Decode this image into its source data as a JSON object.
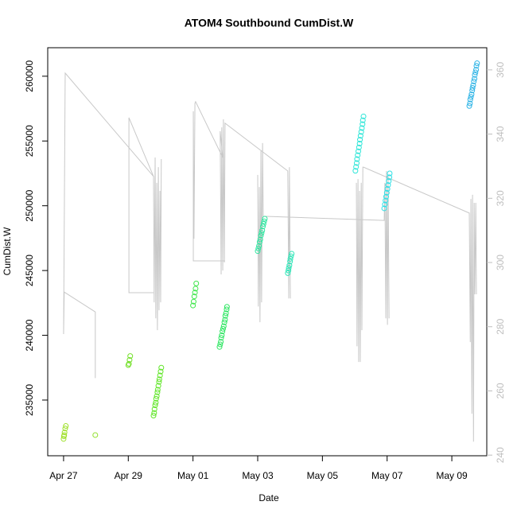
{
  "chart_data": {
    "type": "scatter",
    "title": "ATOM4 Southbound CumDist.W",
    "x_label": "Date",
    "y_label": "CumDist.W",
    "xlim": [
      -0.49,
      13.08
    ],
    "xticks": [
      {
        "value": 0,
        "label": "Apr 27"
      },
      {
        "value": 2,
        "label": "Apr 29"
      },
      {
        "value": 4,
        "label": "May 01"
      },
      {
        "value": 6,
        "label": "May 03"
      },
      {
        "value": 8,
        "label": "May 05"
      },
      {
        "value": 10,
        "label": "May 07"
      },
      {
        "value": 12,
        "label": "May 09"
      }
    ],
    "ylim": [
      230700,
      262200
    ],
    "yticks": [
      235000,
      240000,
      245000,
      250000,
      255000,
      260000
    ],
    "y2lim": [
      239.8,
      366.9
    ],
    "y2ticks": [
      240,
      260,
      280,
      300,
      320,
      340,
      360
    ],
    "y2_tick_color": "#bebebe",
    "series": [
      {
        "mode": "line",
        "axis": "y2",
        "color": "#c8c8c8",
        "x": [
          0.98,
          0.98,
          0.02,
          0,
          0.05,
          2.78,
          null,
          2.78,
          2.02,
          2.02,
          2.78,
          2.8,
          2.83,
          2.85,
          2.88,
          2.9,
          2.93,
          2.95,
          2.98,
          3.0,
          3.02,
          null,
          4.99,
          4.01,
          4.01,
          4.03,
          4.06,
          4.08,
          4.92,
          4.84,
          4.87,
          4.89,
          4.92,
          4.94,
          4.97,
          4.99,
          6.93,
          6.96,
          6.98,
          7.01,
          null,
          6.0,
          6.02,
          6.05,
          6.07,
          6.1,
          6.12,
          6.15,
          6.17,
          9.91,
          9.93,
          9.96,
          9.98,
          10.01,
          10.03,
          10.06,
          null,
          9.05,
          9.07,
          9.1,
          9.12,
          9.15,
          9.17,
          9.2,
          9.22,
          9.25,
          9.27,
          12.54,
          12.57,
          12.59,
          12.62,
          12.64,
          12.67,
          12.69,
          12.71,
          12.74,
          12.76
        ],
        "values": [
          264.0,
          284.6,
          290.8,
          277.7,
          359.0,
          326.8,
          null,
          290.6,
          290.6,
          345.1,
          326.8,
          287.6,
          332.7,
          282.6,
          324.8,
          278.9,
          329.7,
          285.1,
          322.3,
          287.6,
          332.2,
          null,
          300.5,
          300.5,
          347.1,
          307.4,
          349.6,
          350.1,
          332.7,
          340.9,
          296.3,
          342.1,
          297.5,
          344.6,
          300.0,
          343.4,
          328.5,
          288.8,
          329.7,
          288.8,
          null,
          327.3,
          286.3,
          323.5,
          281.4,
          334.7,
          287.6,
          337.2,
          314.4,
          313.1,
          324.8,
          282.6,
          328.5,
          280.6,
          327.3,
          282.6,
          null,
          324.8,
          273.9,
          326.0,
          269.0,
          322.3,
          269.0,
          324.8,
          278.9,
          329.7,
          329.7,
          315.4,
          275.2,
          319.8,
          252.9,
          321.1,
          244.2,
          318.6,
          290.1,
          318.6,
          290.1
        ]
      },
      {
        "mode": "points",
        "color": "#9ee02a",
        "x": [
          0,
          0.01,
          0.02,
          0.03,
          0.05,
          0.07
        ],
        "values": [
          232000,
          232200,
          232300,
          232500,
          232800,
          233000
        ]
      },
      {
        "mode": "points",
        "color": "#90e02a",
        "x": [
          0.98
        ],
        "values": [
          232300
        ]
      },
      {
        "mode": "points",
        "color": "#74e02a",
        "x": [
          2.0,
          2.02,
          2.04,
          2.06
        ],
        "values": [
          237700,
          237800,
          238100,
          238400
        ]
      },
      {
        "mode": "points",
        "color": "#62e62a",
        "x": [
          2.78,
          2.8,
          2.81,
          2.83,
          2.85,
          2.86,
          2.88,
          2.9,
          2.91,
          2.93,
          2.95,
          2.96,
          2.98,
          3.0,
          3.02
        ],
        "values": [
          233800,
          234000,
          234300,
          234600,
          234800,
          235100,
          235300,
          235600,
          235800,
          236100,
          236400,
          236600,
          236900,
          237200,
          237500
        ]
      },
      {
        "mode": "points",
        "color": "#3ee64a",
        "x": [
          4.0,
          4.02,
          4.04,
          4.06,
          4.08,
          4.1
        ],
        "values": [
          242300,
          242600,
          243000,
          243300,
          243600,
          244000
        ]
      },
      {
        "mode": "points",
        "color": "#2ee662",
        "x": [
          4.82,
          4.84,
          4.86,
          4.87,
          4.89,
          4.91,
          4.93,
          4.95,
          4.97,
          4.99,
          5.0,
          5.02,
          5.04,
          5.05
        ],
        "values": [
          239100,
          239300,
          239500,
          239800,
          240000,
          240300,
          240500,
          240700,
          241000,
          241200,
          241500,
          241700,
          242000,
          242200
        ]
      },
      {
        "mode": "points",
        "color": "#2ee6a0",
        "x": [
          6.0,
          6.02,
          6.04,
          6.06,
          6.08,
          6.1,
          6.12,
          6.14,
          6.16,
          6.18,
          6.2,
          6.22
        ],
        "values": [
          246500,
          246700,
          246900,
          247200,
          247400,
          247700,
          247900,
          248100,
          248400,
          248600,
          248800,
          249000
        ]
      },
      {
        "mode": "points",
        "color": "#2ee6b8",
        "x": [
          6.93,
          6.95,
          6.96,
          6.98,
          7.0,
          7.01,
          7.03,
          7.05
        ],
        "values": [
          244800,
          245000,
          245200,
          245400,
          245700,
          245900,
          246100,
          246300
        ]
      },
      {
        "mode": "points",
        "color": "#2ee6d8",
        "x": [
          9.02,
          9.04,
          9.06,
          9.07,
          9.09,
          9.11,
          9.13,
          9.15,
          9.16,
          9.18,
          9.2,
          9.22,
          9.24,
          9.25,
          9.27
        ],
        "values": [
          252700,
          253000,
          253300,
          253600,
          253900,
          254200,
          254500,
          254800,
          255100,
          255400,
          255700,
          256000,
          256300,
          256600,
          256900
        ]
      },
      {
        "mode": "points",
        "color": "#2ee0e6",
        "x": [
          9.91,
          9.93,
          9.95,
          9.97,
          9.99,
          10.01,
          10.03,
          10.05,
          10.07,
          10.08
        ],
        "values": [
          249800,
          250100,
          250400,
          250700,
          251000,
          251300,
          251600,
          251900,
          252200,
          252500
        ]
      },
      {
        "mode": "points",
        "color": "#2eb4e6",
        "x": [
          12.54,
          12.56,
          12.57,
          12.59,
          12.61,
          12.63,
          12.64,
          12.66,
          12.68,
          12.7,
          12.71,
          12.73,
          12.75,
          12.76,
          12.78
        ],
        "values": [
          257700,
          257900,
          258200,
          258400,
          258600,
          258900,
          259100,
          259300,
          259600,
          259800,
          260100,
          260300,
          260500,
          260800,
          261000
        ]
      }
    ]
  }
}
